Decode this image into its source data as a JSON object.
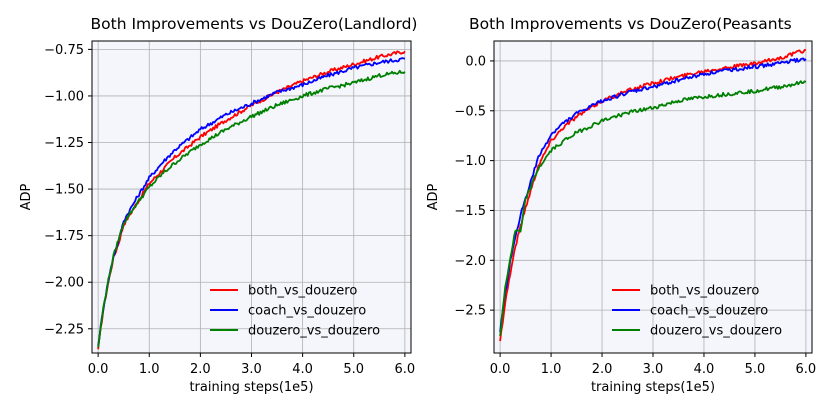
{
  "chart_data": [
    {
      "type": "line",
      "title": "Both Improvements vs DouZero(Landlord)",
      "xlabel": "training steps(1e5)",
      "ylabel": "ADP",
      "xlim": [
        -0.12,
        6.12
      ],
      "ylim": [
        -2.38,
        -0.705
      ],
      "xticks": [
        0,
        1,
        2,
        3,
        4,
        5,
        6
      ],
      "xtick_labels": [
        "0.0",
        "1.0",
        "2.0",
        "3.0",
        "4.0",
        "5.0",
        "6.0"
      ],
      "yticks": [
        -2.25,
        -2.0,
        -1.75,
        -1.5,
        -1.25,
        -1.0,
        -0.75
      ],
      "ytick_labels": [
        "−2.25",
        "−2.00",
        "−1.75",
        "−1.50",
        "−1.25",
        "−1.00",
        "−0.75"
      ],
      "grid": true,
      "legend_position": "lower-right",
      "x": [
        0,
        0.1,
        0.2,
        0.3,
        0.4,
        0.5,
        0.75,
        1.0,
        1.25,
        1.5,
        2.0,
        2.5,
        3.0,
        3.5,
        4.0,
        4.5,
        5.0,
        5.5,
        6.0
      ],
      "series": [
        {
          "name": "both_vs_douzero",
          "color": "#ff0000",
          "values": [
            -2.36,
            -2.15,
            -2.0,
            -1.87,
            -1.79,
            -1.69,
            -1.58,
            -1.47,
            -1.4,
            -1.33,
            -1.22,
            -1.13,
            -1.05,
            -0.98,
            -0.92,
            -0.87,
            -0.83,
            -0.79,
            -0.76
          ]
        },
        {
          "name": "coach_vs_douzero",
          "color": "#0000ff",
          "values": [
            -2.34,
            -2.14,
            -1.99,
            -1.86,
            -1.78,
            -1.67,
            -1.55,
            -1.44,
            -1.36,
            -1.29,
            -1.18,
            -1.1,
            -1.04,
            -0.98,
            -0.94,
            -0.89,
            -0.85,
            -0.82,
            -0.8
          ]
        },
        {
          "name": "douzero_vs_douzero",
          "color": "#008000",
          "values": [
            -2.35,
            -2.14,
            -1.99,
            -1.86,
            -1.77,
            -1.68,
            -1.58,
            -1.49,
            -1.42,
            -1.36,
            -1.26,
            -1.18,
            -1.11,
            -1.05,
            -1.0,
            -0.96,
            -0.93,
            -0.89,
            -0.87
          ]
        }
      ]
    },
    {
      "type": "line",
      "title": "Both Improvements vs DouZero(Peasants",
      "xlabel": "training steps(1e5)",
      "ylabel": "ADP",
      "xlim": [
        -0.12,
        6.12
      ],
      "ylim": [
        -2.93,
        0.2
      ],
      "xticks": [
        0,
        1,
        2,
        3,
        4,
        5,
        6
      ],
      "xtick_labels": [
        "0.0",
        "1.0",
        "2.0",
        "3.0",
        "4.0",
        "5.0",
        "6.0"
      ],
      "yticks": [
        -2.5,
        -2.0,
        -1.5,
        -1.0,
        -0.5,
        0.0
      ],
      "ytick_labels": [
        "−2.5",
        "−2.0",
        "−1.5",
        "−1.0",
        "−0.5",
        "0.0"
      ],
      "grid": true,
      "legend_position": "lower-right",
      "x": [
        0,
        0.1,
        0.2,
        0.3,
        0.4,
        0.5,
        0.75,
        1.0,
        1.25,
        1.5,
        2.0,
        2.5,
        3.0,
        3.5,
        4.0,
        4.5,
        5.0,
        5.5,
        6.0
      ],
      "series": [
        {
          "name": "both_vs_douzero",
          "color": "#ff0000",
          "values": [
            -2.81,
            -2.42,
            -2.13,
            -1.86,
            -1.66,
            -1.47,
            -1.05,
            -0.8,
            -0.66,
            -0.56,
            -0.4,
            -0.3,
            -0.22,
            -0.16,
            -0.1,
            -0.06,
            -0.03,
            0.03,
            0.11
          ]
        },
        {
          "name": "coach_vs_douzero",
          "color": "#0000ff",
          "values": [
            -2.72,
            -2.33,
            -2.01,
            -1.78,
            -1.54,
            -1.38,
            -0.97,
            -0.74,
            -0.62,
            -0.53,
            -0.4,
            -0.32,
            -0.26,
            -0.19,
            -0.13,
            -0.09,
            -0.06,
            -0.02,
            0.02
          ]
        },
        {
          "name": "douzero_vs_douzero",
          "color": "#008000",
          "values": [
            -2.76,
            -2.27,
            -1.98,
            -1.7,
            -1.72,
            -1.39,
            -1.08,
            -0.9,
            -0.8,
            -0.72,
            -0.6,
            -0.52,
            -0.47,
            -0.4,
            -0.36,
            -0.33,
            -0.3,
            -0.26,
            -0.21
          ]
        }
      ]
    }
  ]
}
